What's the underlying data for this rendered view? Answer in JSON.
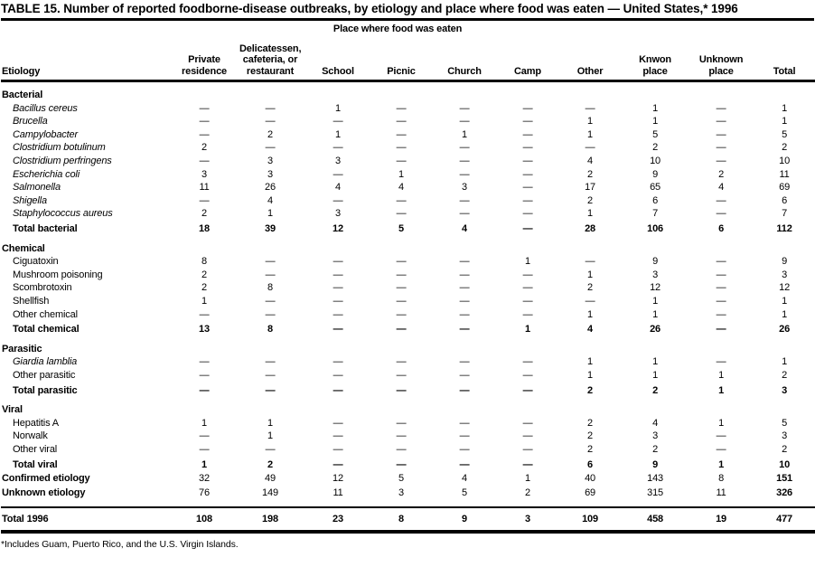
{
  "title": "TABLE 15. Number of reported foodborne-disease outbreaks, by etiology and place where food was eaten — United States,* 1996",
  "table": {
    "etiology_label": "Etiology",
    "spanner": "Place where food was eaten",
    "columns": [
      "Private residence",
      "Delicatessen, cafeteria, or restaurant",
      "School",
      "Picnic",
      "Church",
      "Camp",
      "Other",
      "Knwon place",
      "Unknown place",
      "Total"
    ],
    "rows": [
      {
        "type": "section",
        "label": "Bacterial"
      },
      {
        "type": "data",
        "italic": true,
        "label": "Bacillus cereus",
        "values": [
          "—",
          "—",
          "1",
          "—",
          "—",
          "—",
          "—",
          "1",
          "—",
          "1"
        ]
      },
      {
        "type": "data",
        "italic": true,
        "label": "Brucella",
        "values": [
          "—",
          "—",
          "—",
          "—",
          "—",
          "—",
          "1",
          "1",
          "—",
          "1"
        ]
      },
      {
        "type": "data",
        "italic": true,
        "label": "Campylobacter",
        "values": [
          "—",
          "2",
          "1",
          "—",
          "1",
          "—",
          "1",
          "5",
          "—",
          "5"
        ]
      },
      {
        "type": "data",
        "italic": true,
        "label": "Clostridium botulinum",
        "values": [
          "2",
          "—",
          "—",
          "—",
          "—",
          "—",
          "—",
          "2",
          "—",
          "2"
        ]
      },
      {
        "type": "data",
        "italic": true,
        "label": "Clostridium perfringens",
        "values": [
          "—",
          "3",
          "3",
          "—",
          "—",
          "—",
          "4",
          "10",
          "—",
          "10"
        ]
      },
      {
        "type": "data",
        "italic": true,
        "label": "Escherichia coli",
        "values": [
          "3",
          "3",
          "—",
          "1",
          "—",
          "—",
          "2",
          "9",
          "2",
          "11"
        ]
      },
      {
        "type": "data",
        "italic": true,
        "label": "Salmonella",
        "values": [
          "11",
          "26",
          "4",
          "4",
          "3",
          "—",
          "17",
          "65",
          "4",
          "69"
        ]
      },
      {
        "type": "data",
        "italic": true,
        "label": "Shigella",
        "values": [
          "—",
          "4",
          "—",
          "—",
          "—",
          "—",
          "2",
          "6",
          "—",
          "6"
        ]
      },
      {
        "type": "data",
        "italic": true,
        "label": "Staphylococcus aureus",
        "values": [
          "2",
          "1",
          "3",
          "—",
          "—",
          "—",
          "1",
          "7",
          "—",
          "7"
        ]
      },
      {
        "type": "total",
        "label": "Total bacterial",
        "values": [
          "18",
          "39",
          "12",
          "5",
          "4",
          "—",
          "28",
          "106",
          "6",
          "112"
        ]
      },
      {
        "type": "section",
        "label": "Chemical"
      },
      {
        "type": "data",
        "italic": false,
        "label": "Ciguatoxin",
        "values": [
          "8",
          "—",
          "—",
          "—",
          "—",
          "1",
          "—",
          "9",
          "—",
          "9"
        ]
      },
      {
        "type": "data",
        "italic": false,
        "label": "Mushroom poisoning",
        "values": [
          "2",
          "—",
          "—",
          "—",
          "—",
          "—",
          "1",
          "3",
          "—",
          "3"
        ]
      },
      {
        "type": "data",
        "italic": false,
        "label": "Scombrotoxin",
        "values": [
          "2",
          "8",
          "—",
          "—",
          "—",
          "—",
          "2",
          "12",
          "—",
          "12"
        ]
      },
      {
        "type": "data",
        "italic": false,
        "label": "Shellfish",
        "values": [
          "1",
          "—",
          "—",
          "—",
          "—",
          "—",
          "—",
          "1",
          "—",
          "1"
        ]
      },
      {
        "type": "data",
        "italic": false,
        "label": "Other chemical",
        "values": [
          "—",
          "—",
          "—",
          "—",
          "—",
          "—",
          "1",
          "1",
          "—",
          "1"
        ]
      },
      {
        "type": "total",
        "label": "Total chemical",
        "values": [
          "13",
          "8",
          "—",
          "—",
          "—",
          "1",
          "4",
          "26",
          "—",
          "26"
        ]
      },
      {
        "type": "section",
        "label": "Parasitic"
      },
      {
        "type": "data",
        "italic": true,
        "label": "Giardia lamblia",
        "values": [
          "—",
          "—",
          "—",
          "—",
          "—",
          "—",
          "1",
          "1",
          "—",
          "1"
        ]
      },
      {
        "type": "data",
        "italic": false,
        "label": "Other parasitic",
        "values": [
          "—",
          "—",
          "—",
          "—",
          "—",
          "—",
          "1",
          "1",
          "1",
          "2"
        ]
      },
      {
        "type": "total",
        "label": "Total parasitic",
        "values": [
          "—",
          "—",
          "—",
          "—",
          "—",
          "—",
          "2",
          "2",
          "1",
          "3"
        ]
      },
      {
        "type": "section",
        "label": "Viral"
      },
      {
        "type": "data",
        "italic": false,
        "label": "Hepatitis A",
        "values": [
          "1",
          "1",
          "—",
          "—",
          "—",
          "—",
          "2",
          "4",
          "1",
          "5"
        ]
      },
      {
        "type": "data",
        "italic": false,
        "label": "Norwalk",
        "values": [
          "—",
          "1",
          "—",
          "—",
          "—",
          "—",
          "2",
          "3",
          "—",
          "3"
        ]
      },
      {
        "type": "data",
        "italic": false,
        "label": "Other viral",
        "values": [
          "—",
          "—",
          "—",
          "—",
          "—",
          "—",
          "2",
          "2",
          "—",
          "2"
        ]
      },
      {
        "type": "total",
        "label": "Total viral",
        "values": [
          "1",
          "2",
          "—",
          "—",
          "—",
          "—",
          "6",
          "9",
          "1",
          "10"
        ]
      },
      {
        "type": "summary",
        "label": "Confirmed etiology",
        "values": [
          "32",
          "49",
          "12",
          "5",
          "4",
          "1",
          "40",
          "143",
          "8",
          "151"
        ]
      },
      {
        "type": "summary",
        "label": "Unknown etiology",
        "values": [
          "76",
          "149",
          "11",
          "3",
          "5",
          "2",
          "69",
          "315",
          "11",
          "326"
        ]
      },
      {
        "type": "grand",
        "label": "Total 1996",
        "values": [
          "108",
          "198",
          "23",
          "8",
          "9",
          "3",
          "109",
          "458",
          "19",
          "477"
        ]
      }
    ]
  },
  "footnote": "*Includes Guam, Puerto Rico, and the U.S. Virgin Islands."
}
